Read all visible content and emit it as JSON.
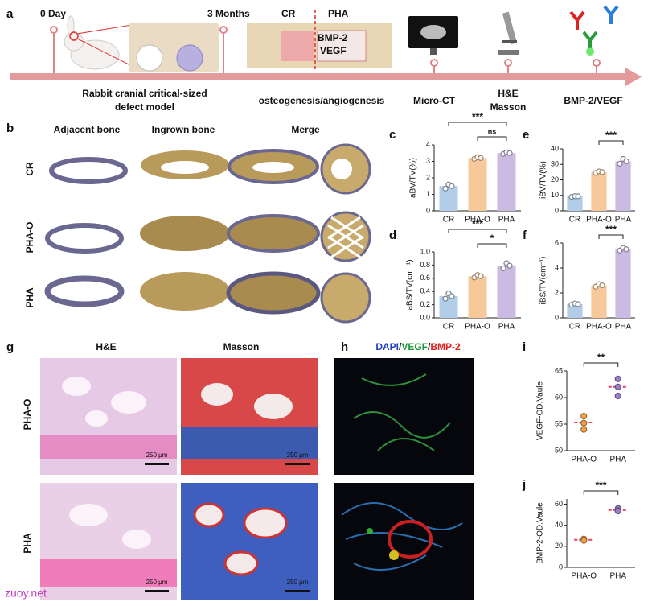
{
  "figure": {
    "panel_labels": [
      "a",
      "b",
      "c",
      "d",
      "e",
      "f",
      "g",
      "h",
      "i",
      "j"
    ],
    "timeline": {
      "start": "0 Day",
      "end": "3 Months",
      "groups": [
        "CR",
        "PHA"
      ],
      "factors": [
        "BMP-2",
        "VEGF"
      ],
      "steps": [
        [
          "Rabbit cranial critical-sized",
          "defect model"
        ],
        [
          "osteogenesis/angiogenesis"
        ],
        [
          "Micro-CT"
        ],
        [
          "H&E",
          "Masson"
        ],
        [
          "BMP-2/VEGF"
        ]
      ]
    },
    "microct": {
      "columns": [
        "Adjacent bone",
        "Ingrown bone",
        "Merge"
      ],
      "rows": [
        "CR",
        "PHA-O",
        "PHA"
      ]
    },
    "histology": {
      "columns": [
        "H&E",
        "Masson"
      ],
      "rows": [
        "PHA-O",
        "PHA"
      ],
      "scale_bar": "250 μm"
    },
    "fluorescence": {
      "stains": [
        "DAPI",
        "VEGF",
        "BMP-2"
      ],
      "separator": "/",
      "colors": [
        "#1f3fbf",
        "#1a9a3a",
        "#e02020"
      ]
    },
    "watermark": "zuoy.net"
  },
  "chart_data": [
    {
      "type": "bar",
      "ylabel": "aBV/TV(%)",
      "categories": [
        "CR",
        "PHA-O",
        "PHA"
      ],
      "colors": [
        "#b3cde8",
        "#f7c99a",
        "#cbbbe3"
      ],
      "values": [
        1.5,
        3.2,
        3.5
      ],
      "points": [
        [
          1.35,
          1.6,
          1.5
        ],
        [
          3.15,
          3.25,
          3.2
        ],
        [
          3.45,
          3.55,
          3.5
        ]
      ],
      "ylim": [
        0,
        4
      ],
      "yticks": [
        0,
        1,
        2,
        3,
        4
      ],
      "significance": [
        {
          "pair": [
            "CR",
            "PHA"
          ],
          "label": "***"
        },
        {
          "pair": [
            "PHA-O",
            "PHA"
          ],
          "label": "ns"
        }
      ]
    },
    {
      "type": "bar",
      "ylabel": "aBS/TV(cm⁻¹)",
      "categories": [
        "CR",
        "PHA-O",
        "PHA"
      ],
      "colors": [
        "#b3cde8",
        "#f7c99a",
        "#cbbbe3"
      ],
      "values": [
        0.33,
        0.63,
        0.79
      ],
      "points": [
        [
          0.29,
          0.37,
          0.33
        ],
        [
          0.61,
          0.65,
          0.63
        ],
        [
          0.75,
          0.83,
          0.79
        ]
      ],
      "ylim": [
        0,
        1
      ],
      "yticks": [
        {
          "value": 0,
          "label": "0.0"
        },
        0.2,
        0.4,
        0.6,
        0.8,
        {
          "value": 1,
          "label": "1.0"
        }
      ],
      "significance": [
        {
          "pair": [
            "CR",
            "PHA"
          ],
          "label": "***"
        },
        {
          "pair": [
            "PHA-O",
            "PHA"
          ],
          "label": "*"
        }
      ]
    },
    {
      "type": "bar",
      "ylabel": "iBV/TV(%)",
      "categories": [
        "CR",
        "PHA-O",
        "PHA"
      ],
      "colors": [
        "#b3cde8",
        "#f7c99a",
        "#cbbbe3"
      ],
      "values": [
        9.3,
        25,
        32
      ],
      "points": [
        [
          9,
          9.5,
          9.4
        ],
        [
          24.5,
          25.5,
          25
        ],
        [
          30.5,
          33.5,
          32
        ]
      ],
      "ylim": [
        0,
        40
      ],
      "yticks": [
        0,
        10,
        20,
        30,
        40
      ],
      "significance": [
        {
          "pair": [
            "PHA-O",
            "PHA"
          ],
          "label": "***"
        }
      ]
    },
    {
      "type": "bar",
      "ylabel": "iBS/TV(cm⁻¹)",
      "categories": [
        "CR",
        "PHA-O",
        "PHA"
      ],
      "colors": [
        "#b3cde8",
        "#f7c99a",
        "#cbbbe3"
      ],
      "values": [
        1.1,
        2.6,
        5.5
      ],
      "points": [
        [
          1.05,
          1.15,
          1.1
        ],
        [
          2.5,
          2.7,
          2.6
        ],
        [
          5.4,
          5.6,
          5.5
        ]
      ],
      "ylim": [
        0,
        6
      ],
      "yticks": [
        0,
        2,
        4,
        6
      ],
      "significance": [
        {
          "pair": [
            "PHA-O",
            "PHA"
          ],
          "label": "***"
        }
      ]
    },
    {
      "type": "dot",
      "ylabel": "VEGF-OD.Vaule",
      "categories": [
        "PHA-O",
        "PHA"
      ],
      "colors": [
        "#f0a24a",
        "#9b7fc7"
      ],
      "mean_color": "#e0406a",
      "values": [
        55.3,
        62
      ],
      "points": [
        [
          56.5,
          55.2,
          54
        ],
        [
          63.5,
          62,
          60.3
        ]
      ],
      "ylim": [
        50,
        65
      ],
      "yticks": [
        50,
        55,
        60,
        65
      ],
      "significance": [
        {
          "pair": [
            "PHA-O",
            "PHA"
          ],
          "label": "**"
        }
      ]
    },
    {
      "type": "dot",
      "ylabel": "BMP-2-OD.Vaule",
      "categories": [
        "PHA-O",
        "PHA"
      ],
      "colors": [
        "#f0a24a",
        "#9b7fc7"
      ],
      "mean_color": "#e0406a",
      "values": [
        26.2,
        54.5
      ],
      "points": [
        [
          27,
          26,
          25.5
        ],
        [
          56,
          54,
          53.5
        ]
      ],
      "ylim": [
        0,
        65
      ],
      "yticks": [
        0,
        20,
        40,
        60
      ],
      "significance": [
        {
          "pair": [
            "PHA-O",
            "PHA"
          ],
          "label": "***"
        }
      ]
    }
  ]
}
